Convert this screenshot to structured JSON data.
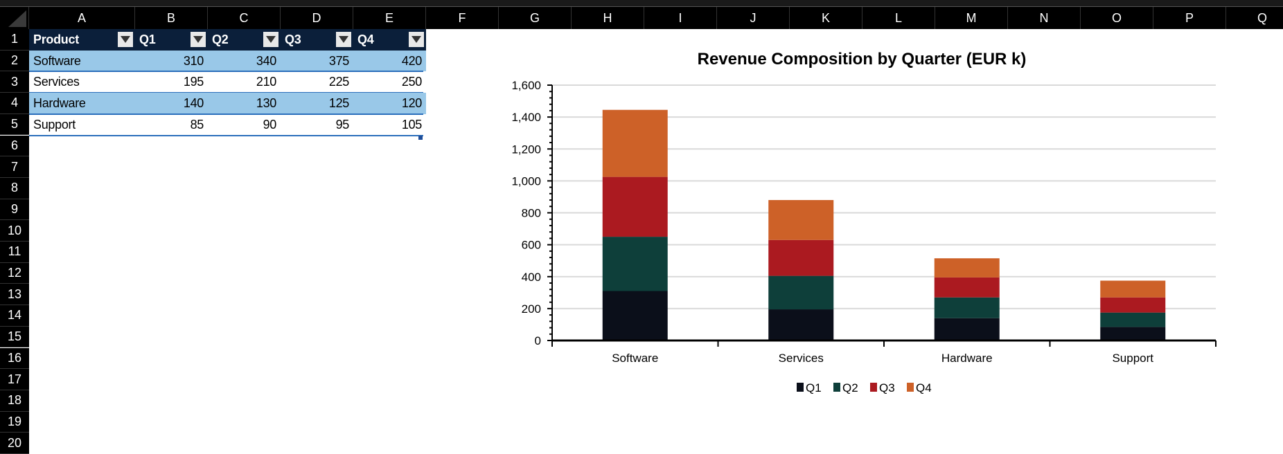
{
  "sheet": {
    "columns": [
      "A",
      "B",
      "C",
      "D",
      "E",
      "F",
      "G",
      "H",
      "I",
      "J",
      "K",
      "L",
      "M",
      "N",
      "O",
      "P",
      "Q"
    ],
    "rows": [
      "1",
      "2",
      "3",
      "4",
      "5",
      "6",
      "7",
      "8",
      "9",
      "10",
      "11",
      "12",
      "13",
      "14",
      "15",
      "16",
      "17",
      "18",
      "19",
      "20"
    ]
  },
  "table": {
    "headers": [
      "Product",
      "Q1",
      "Q2",
      "Q3",
      "Q4"
    ],
    "rows": [
      [
        "Software",
        "310",
        "340",
        "375",
        "420"
      ],
      [
        "Services",
        "195",
        "210",
        "225",
        "250"
      ],
      [
        "Hardware",
        "140",
        "130",
        "125",
        "120"
      ],
      [
        "Support",
        "85",
        "90",
        "95",
        "105"
      ]
    ],
    "colors": {
      "header": "#0b1f3a",
      "band": "#99c8e8",
      "border": "#2a6ebb"
    }
  },
  "chart_data": {
    "type": "bar",
    "stacked": true,
    "title": "Revenue Composition by Quarter (EUR k)",
    "categories": [
      "Software",
      "Services",
      "Hardware",
      "Support"
    ],
    "series": [
      {
        "name": "Q1",
        "values": [
          310,
          195,
          140,
          85
        ],
        "color": "#0b0f1a"
      },
      {
        "name": "Q2",
        "values": [
          340,
          210,
          130,
          90
        ],
        "color": "#0e3f3a"
      },
      {
        "name": "Q3",
        "values": [
          375,
          225,
          125,
          95
        ],
        "color": "#ab1a20"
      },
      {
        "name": "Q4",
        "values": [
          420,
          250,
          120,
          105
        ],
        "color": "#cd6128"
      }
    ],
    "ylim": [
      0,
      1600
    ],
    "yticks": [
      "0",
      "200",
      "400",
      "600",
      "800",
      "1,000",
      "1,200",
      "1,400",
      "1,600"
    ],
    "grid": true,
    "legend": "bottom"
  }
}
